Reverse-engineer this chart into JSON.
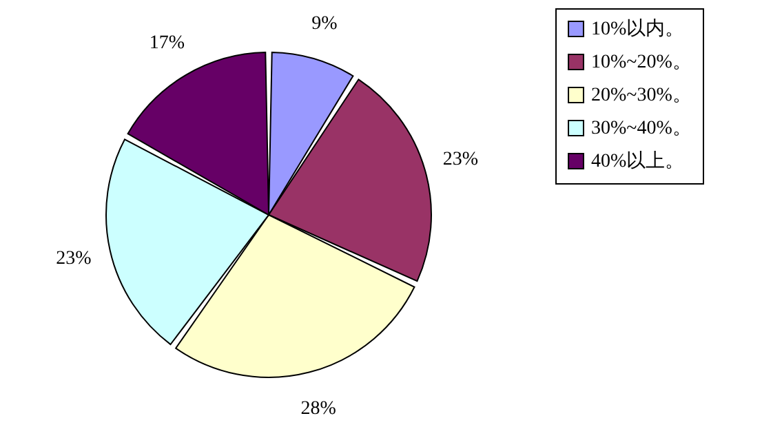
{
  "chart_data": {
    "type": "pie",
    "categories": [
      "10%以内。",
      "10%~20%。",
      "20%~30%。",
      "30%~40%。",
      "40%以上。"
    ],
    "values": [
      9,
      23,
      28,
      23,
      17
    ],
    "colors": [
      "#9999ff",
      "#993366",
      "#ffffcc",
      "#ccffff",
      "#660066"
    ],
    "value_labels": [
      "9%",
      "23%",
      "28%",
      "23%",
      "17%"
    ],
    "legend": "right"
  }
}
